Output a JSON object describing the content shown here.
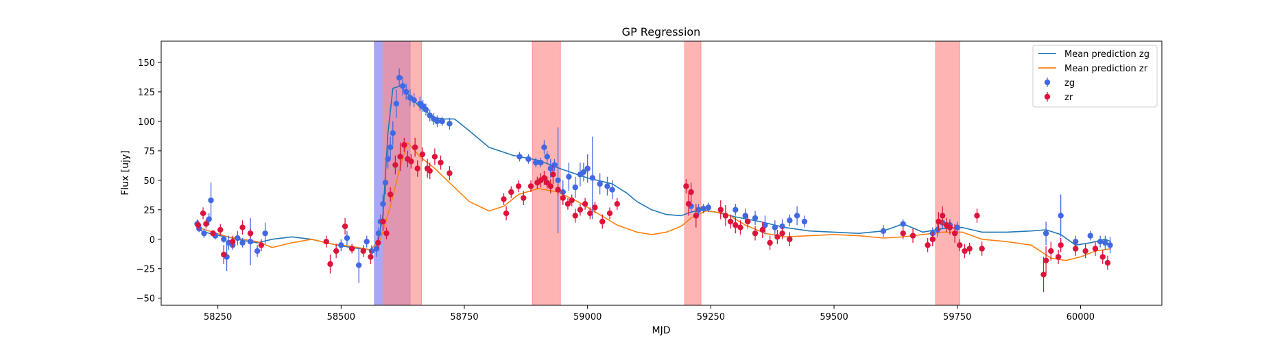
{
  "chart_data": {
    "type": "scatter",
    "title": "GP Regression",
    "xlabel": "MJD",
    "ylabel": "Flux [ujy]",
    "xlim": [
      58135,
      60165
    ],
    "ylim": [
      -56,
      168
    ],
    "xticks": [
      58250,
      58500,
      58750,
      59000,
      59250,
      59500,
      59750,
      60000
    ],
    "yticks": [
      -50,
      -25,
      0,
      25,
      50,
      75,
      100,
      125,
      150
    ],
    "grid": false,
    "legend_position": "top-right",
    "colors": {
      "zg_points": "#4169e1",
      "zr_points": "#dc143c",
      "zg_line": "#1f77b4",
      "zr_line": "#ff7f0e",
      "band_blue": "#7878f0",
      "band_red": "#ff8c8c"
    },
    "bands": [
      {
        "x0": 58568,
        "x1": 58640,
        "color": "blue"
      },
      {
        "x0": 58585,
        "x1": 58663,
        "color": "red"
      },
      {
        "x0": 58888,
        "x1": 58945,
        "color": "red"
      },
      {
        "x0": 59197,
        "x1": 59230,
        "color": "red"
      },
      {
        "x0": 59706,
        "x1": 59755,
        "color": "red"
      }
    ],
    "series": [
      {
        "name": "Mean prediction zg",
        "kind": "line",
        "color": "#1f77b4",
        "x": [
          58210,
          58240,
          58270,
          58300,
          58330,
          58360,
          58400,
          58440,
          58480,
          58520,
          58560,
          58575,
          58585,
          58595,
          58605,
          58620,
          58640,
          58660,
          58690,
          58710,
          58730,
          58760,
          58800,
          58850,
          58900,
          58950,
          59000,
          59050,
          59080,
          59100,
          59130,
          59160,
          59190,
          59210,
          59230,
          59260,
          59300,
          59350,
          59400,
          59450,
          59500,
          59550,
          59600,
          59640,
          59680,
          59720,
          59760,
          59800,
          59850,
          59900,
          59930,
          59960,
          59990,
          60020,
          60050,
          60062
        ],
        "y": [
          8,
          4,
          2,
          -1,
          -3,
          0,
          2,
          0,
          -4,
          -7,
          -9,
          -2,
          20,
          90,
          128,
          130,
          121,
          112,
          103,
          102,
          102,
          92,
          78,
          71,
          67,
          59,
          52,
          47,
          39,
          32,
          25,
          21,
          20,
          23,
          25,
          23,
          19,
          15,
          10,
          7,
          6,
          5,
          7,
          13,
          6,
          9,
          10,
          6,
          6,
          7,
          8,
          4,
          -5,
          -3,
          0,
          -2
        ]
      },
      {
        "name": "Mean prediction zr",
        "kind": "line",
        "color": "#ff7f0e",
        "x": [
          58210,
          58240,
          58270,
          58300,
          58330,
          58360,
          58400,
          58440,
          58480,
          58520,
          58560,
          58580,
          58600,
          58620,
          58635,
          58660,
          58690,
          58720,
          58760,
          58800,
          58830,
          58860,
          58900,
          58940,
          58980,
          59020,
          59060,
          59100,
          59130,
          59160,
          59190,
          59210,
          59240,
          59280,
          59320,
          59360,
          59400,
          59450,
          59500,
          59550,
          59600,
          59640,
          59680,
          59720,
          59760,
          59800,
          59850,
          59900,
          59940,
          59970,
          60000,
          60030,
          60062
        ],
        "y": [
          10,
          6,
          2,
          0,
          -2,
          -7,
          -3,
          0,
          -4,
          -6,
          -9,
          0,
          28,
          62,
          82,
          70,
          60,
          48,
          32,
          24,
          28,
          38,
          43,
          40,
          32,
          22,
          12,
          6,
          4,
          6,
          11,
          18,
          24,
          22,
          12,
          5,
          2,
          3,
          4,
          3,
          1,
          2,
          4,
          6,
          6,
          0,
          -2,
          -5,
          -16,
          -18,
          -15,
          -10,
          -8
        ]
      },
      {
        "name": "zg",
        "kind": "points",
        "color": "#4169e1",
        "x": [
          58208,
          58212,
          58222,
          58232,
          58236,
          58245,
          58262,
          58268,
          58272,
          58280,
          58290,
          58300,
          58316,
          58330,
          58346,
          58500,
          58512,
          58536,
          58552,
          58562,
          58572,
          58576,
          58580,
          58585,
          58590,
          58595,
          58600,
          58605,
          58612,
          58618,
          58625,
          58632,
          58640,
          58648,
          58660,
          58666,
          58672,
          58680,
          58688,
          58695,
          58705,
          58720,
          58862,
          58880,
          58895,
          58905,
          58912,
          58918,
          58925,
          58933,
          58940,
          58950,
          58962,
          58975,
          58985,
          58992,
          59000,
          59010,
          59025,
          59040,
          59050,
          59210,
          59225,
          59235,
          59245,
          59300,
          59320,
          59340,
          59360,
          59380,
          59395,
          59410,
          59425,
          59440,
          59600,
          59640,
          59700,
          59710,
          59720,
          59735,
          59750,
          59930,
          59960,
          59990,
          60020,
          60040,
          60050,
          60060
        ],
        "y": [
          13,
          9,
          5,
          17,
          33,
          3,
          0,
          -15,
          -3,
          -5,
          1,
          -3,
          -2,
          -10,
          5,
          -5,
          1,
          -22,
          -2,
          -10,
          -8,
          5,
          15,
          30,
          48,
          68,
          78,
          90,
          115,
          137,
          130,
          125,
          120,
          118,
          115,
          113,
          110,
          105,
          102,
          100,
          100,
          98,
          70,
          68,
          65,
          65,
          78,
          70,
          60,
          63,
          50,
          40,
          53,
          44,
          55,
          57,
          60,
          52,
          47,
          45,
          42,
          28,
          25,
          26,
          27,
          25,
          20,
          18,
          12,
          10,
          11,
          16,
          20,
          15,
          7,
          13,
          5,
          8,
          14,
          12,
          10,
          5,
          20,
          -2,
          3,
          -2,
          -3,
          -5
        ],
        "err": [
          4,
          3,
          4,
          5,
          15,
          3,
          3,
          12,
          6,
          4,
          6,
          4,
          20,
          5,
          9,
          5,
          6,
          15,
          5,
          5,
          7,
          5,
          6,
          8,
          10,
          8,
          9,
          10,
          12,
          8,
          8,
          7,
          7,
          6,
          6,
          5,
          5,
          5,
          5,
          5,
          4,
          5,
          4,
          4,
          4,
          4,
          6,
          5,
          8,
          5,
          45,
          10,
          12,
          9,
          10,
          8,
          12,
          35,
          9,
          8,
          8,
          5,
          5,
          4,
          4,
          5,
          6,
          6,
          8,
          6,
          6,
          5,
          8,
          5,
          5,
          4,
          5,
          6,
          5,
          5,
          5,
          10,
          18,
          5,
          4,
          5,
          6,
          7
        ]
      },
      {
        "name": "zr",
        "kind": "points",
        "color": "#dc143c",
        "x": [
          58210,
          58220,
          58226,
          58240,
          58255,
          58262,
          58280,
          58300,
          58316,
          58338,
          58470,
          58478,
          58490,
          58508,
          58522,
          58545,
          58560,
          58575,
          58585,
          58592,
          58600,
          58610,
          58620,
          58628,
          58635,
          58642,
          58650,
          58655,
          58665,
          58675,
          58680,
          58690,
          58702,
          58720,
          58830,
          58835,
          58845,
          58860,
          58870,
          58885,
          58898,
          58905,
          58912,
          58918,
          58925,
          58930,
          58940,
          58950,
          58960,
          58968,
          58975,
          58985,
          58995,
          59005,
          59015,
          59030,
          59045,
          59060,
          59200,
          59205,
          59210,
          59220,
          59270,
          59280,
          59290,
          59300,
          59310,
          59325,
          59340,
          59355,
          59370,
          59385,
          59395,
          59410,
          59640,
          59660,
          59690,
          59700,
          59712,
          59720,
          59728,
          59735,
          59745,
          59755,
          59765,
          59775,
          59790,
          59800,
          59925,
          59930,
          59940,
          59955,
          59960,
          59990,
          60010,
          60030,
          60045,
          60055
        ],
        "y": [
          12,
          22,
          13,
          5,
          8,
          -13,
          -2,
          10,
          5,
          -5,
          -2,
          -21,
          -10,
          11,
          -8,
          -10,
          -15,
          -3,
          15,
          5,
          38,
          63,
          70,
          80,
          68,
          66,
          78,
          60,
          72,
          60,
          58,
          70,
          65,
          56,
          34,
          22,
          40,
          45,
          35,
          45,
          48,
          50,
          52,
          48,
          45,
          55,
          42,
          35,
          30,
          33,
          20,
          25,
          30,
          22,
          27,
          15,
          22,
          30,
          45,
          30,
          40,
          20,
          25,
          20,
          15,
          12,
          10,
          15,
          5,
          8,
          -3,
          2,
          5,
          0,
          5,
          3,
          -5,
          0,
          15,
          20,
          12,
          10,
          5,
          -5,
          -10,
          -8,
          20,
          -8,
          -30,
          -18,
          -10,
          -15,
          -5,
          -8,
          -10,
          -8,
          -15,
          -20
        ],
        "err": [
          4,
          5,
          4,
          3,
          5,
          8,
          5,
          6,
          4,
          5,
          5,
          8,
          6,
          7,
          4,
          5,
          6,
          5,
          8,
          5,
          6,
          8,
          12,
          6,
          7,
          6,
          8,
          7,
          6,
          8,
          7,
          7,
          6,
          6,
          5,
          6,
          5,
          5,
          6,
          5,
          5,
          6,
          6,
          5,
          6,
          8,
          5,
          6,
          5,
          5,
          6,
          5,
          5,
          5,
          5,
          6,
          5,
          5,
          6,
          10,
          8,
          10,
          8,
          9,
          6,
          7,
          6,
          6,
          6,
          7,
          6,
          6,
          5,
          6,
          5,
          6,
          6,
          6,
          8,
          8,
          6,
          6,
          8,
          5,
          6,
          5,
          6,
          6,
          15,
          12,
          8,
          6,
          6,
          6,
          6,
          6,
          6,
          6
        ]
      }
    ],
    "legend": [
      {
        "label": "Mean prediction zg",
        "kind": "line",
        "color": "#1f77b4"
      },
      {
        "label": "Mean prediction zr",
        "kind": "line",
        "color": "#ff7f0e"
      },
      {
        "label": "zg",
        "kind": "point",
        "color": "#4169e1"
      },
      {
        "label": "zr",
        "kind": "point",
        "color": "#dc143c"
      }
    ]
  }
}
